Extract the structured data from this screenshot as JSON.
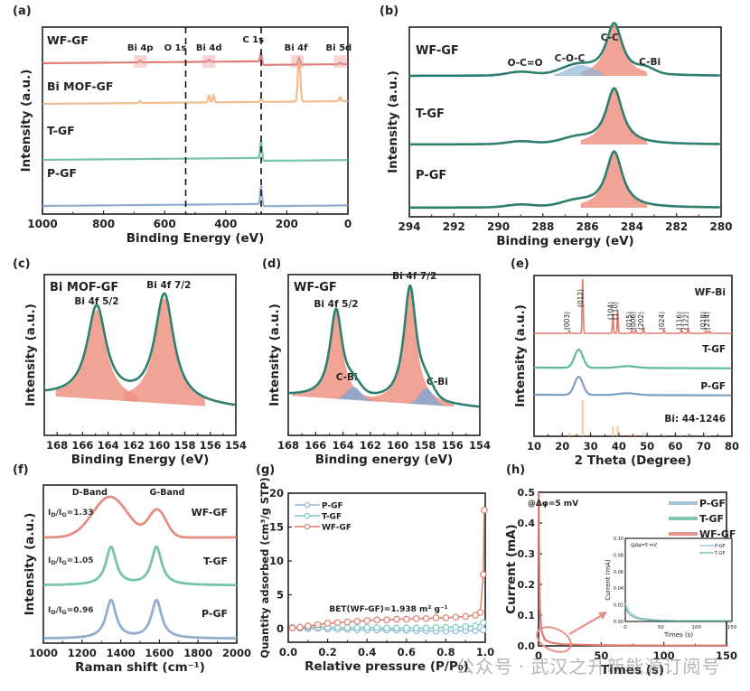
{
  "chart_data": [
    {
      "id": "a",
      "panel_label": "(a)",
      "type": "line",
      "title": "",
      "xlabel": "Binding Energy (eV)",
      "ylabel": "Intensity (a.u.)",
      "xlim": [
        1000,
        0
      ],
      "xticks": [
        1000,
        800,
        600,
        400,
        200,
        0
      ],
      "xtick_labels": [
        "1000",
        "800",
        "600",
        "400",
        "200",
        "0"
      ],
      "dashed_lines_x": [
        531,
        284
      ],
      "annotations": [
        {
          "text": "Bi 4p",
          "x": 680
        },
        {
          "text": "O 1s",
          "x": 565
        },
        {
          "text": "Bi 4d",
          "x": 455
        },
        {
          "text": "C 1s",
          "x": 310
        },
        {
          "text": "Bi 4f",
          "x": 170
        },
        {
          "text": "Bi 5d",
          "x": 30
        }
      ],
      "series": [
        {
          "name": "WF-GF",
          "color": "#d9665e",
          "offset": 3,
          "peaks": [
            [
              680,
              0.05
            ],
            [
              455,
              0.06
            ],
            [
              284,
              0.25
            ],
            [
              160,
              0.18
            ],
            [
              25,
              0.05
            ]
          ],
          "step_after_c1s": -0.1
        },
        {
          "name": "Bi MOF-GF",
          "color": "#f0b07a",
          "offset": 2,
          "peaks": [
            [
              680,
              0.05
            ],
            [
              455,
              0.2
            ],
            [
              440,
              0.2
            ],
            [
              284,
              0.1
            ],
            [
              162,
              0.9
            ],
            [
              157,
              0.7
            ],
            [
              25,
              0.12
            ]
          ],
          "step_after_c1s": 0.0
        },
        {
          "name": "T-GF",
          "color": "#5fb89e",
          "offset": 1,
          "peaks": [
            [
              284,
              0.5
            ]
          ],
          "step_after_c1s": -0.08
        },
        {
          "name": "P-GF",
          "color": "#7f9fc4",
          "offset": 0,
          "peaks": [
            [
              284,
              0.5
            ]
          ],
          "step_after_c1s": -0.06
        }
      ]
    },
    {
      "id": "b",
      "panel_label": "(b)",
      "type": "line",
      "xlabel": "Binding energy (eV)",
      "ylabel": "Intensity (a.u.)",
      "xlim": [
        294,
        280
      ],
      "xticks": [
        294,
        292,
        290,
        288,
        286,
        284,
        282,
        280
      ],
      "xtick_labels": [
        "294",
        "292",
        "290",
        "288",
        "286",
        "284",
        "282",
        "280"
      ],
      "annotations": [
        {
          "text": "O-C=O",
          "x": 288.8
        },
        {
          "text": "C-O-C",
          "x": 286.8
        },
        {
          "text": "C-C",
          "x": 285.0
        },
        {
          "text": "C-Bi",
          "x": 283.2
        }
      ],
      "series": [
        {
          "name": "WF-GF",
          "peak_center": 284.8,
          "peak_height": 0.55,
          "components": [
            "C-C",
            "C-O-C",
            "O-C=O",
            "C-Bi"
          ]
        },
        {
          "name": "T-GF",
          "peak_center": 284.8,
          "peak_height": 0.6,
          "components": [
            "C-C"
          ]
        },
        {
          "name": "P-GF",
          "peak_center": 284.8,
          "peak_height": 0.6,
          "components": [
            "C-C"
          ]
        }
      ]
    },
    {
      "id": "c",
      "panel_label": "(c)",
      "type": "line",
      "xlabel": "Binding Energy (eV)",
      "ylabel": "Intensity (a.u.)",
      "xlim": [
        169,
        154
      ],
      "xticks": [
        168,
        166,
        164,
        162,
        160,
        158,
        156,
        154
      ],
      "xtick_labels": [
        "168",
        "166",
        "164",
        "162",
        "160",
        "158",
        "156",
        "154"
      ],
      "sample_label": "Bi MOF-GF",
      "peaks": [
        {
          "label": "Bi 4f 5/2",
          "center": 164.9,
          "height": 0.72,
          "width": 0.9
        },
        {
          "label": "Bi 4f 7/2",
          "center": 159.6,
          "height": 0.85,
          "width": 0.9
        }
      ]
    },
    {
      "id": "d",
      "panel_label": "(d)",
      "type": "line",
      "xlabel": "Binding energy (eV)",
      "ylabel": "Intensity (a.u.)",
      "xlim": [
        168,
        154
      ],
      "xticks": [
        168,
        166,
        164,
        162,
        160,
        158,
        156,
        154
      ],
      "xtick_labels": [
        "168",
        "166",
        "164",
        "162",
        "160",
        "158",
        "156",
        "154"
      ],
      "sample_label": "WF-GF",
      "peaks": [
        {
          "label": "Bi 4f 5/2",
          "center": 164.5,
          "height": 0.7,
          "width": 0.55
        },
        {
          "label": "Bi 4f 7/2",
          "center": 159.1,
          "height": 0.92,
          "width": 0.55
        }
      ],
      "cbi_peaks": [
        {
          "label": "C-Bi",
          "center": 163.2,
          "height": 0.08
        },
        {
          "label": "C-Bi",
          "center": 157.9,
          "height": 0.1
        }
      ]
    },
    {
      "id": "e",
      "panel_label": "(e)",
      "type": "line",
      "xlabel": "2 Theta (Degree)",
      "ylabel": "Intensity (a.u.)",
      "xlim": [
        10,
        80
      ],
      "xticks": [
        10,
        20,
        30,
        40,
        50,
        60,
        70,
        80
      ],
      "xtick_labels": [
        "10",
        "20",
        "30",
        "40",
        "50",
        "60",
        "70",
        "80"
      ],
      "series": [
        {
          "name": "WF-Bi",
          "color": "#e07a6e"
        },
        {
          "name": "T-GF",
          "color": "#5fb89e"
        },
        {
          "name": "P-GF",
          "color": "#7f9fc4"
        },
        {
          "name": "Bi: 44-1246",
          "color": "#f0b07a"
        }
      ],
      "hkl": [
        {
          "label": "(003)",
          "x": 22.5
        },
        {
          "label": "(012)",
          "x": 27.2
        },
        {
          "label": "(104)",
          "x": 37.9
        },
        {
          "label": "(110)",
          "x": 39.6
        },
        {
          "label": "(015)",
          "x": 44.6
        },
        {
          "label": "(006)",
          "x": 46.0
        },
        {
          "label": "(202)",
          "x": 48.7
        },
        {
          "label": "(024)",
          "x": 56.0
        },
        {
          "label": "(116)",
          "x": 62.2
        },
        {
          "label": "(122)",
          "x": 64.5
        },
        {
          "label": "(018)",
          "x": 70.8
        },
        {
          "label": "(214)",
          "x": 72.0
        }
      ],
      "wfbi_peaks": [
        [
          22.5,
          0.05
        ],
        [
          27.2,
          1.0
        ],
        [
          37.9,
          0.35
        ],
        [
          39.6,
          0.42
        ],
        [
          44.6,
          0.05
        ],
        [
          46.0,
          0.06
        ],
        [
          48.7,
          0.1
        ],
        [
          56.0,
          0.06
        ],
        [
          62.2,
          0.07
        ],
        [
          64.5,
          0.08
        ],
        [
          70.8,
          0.05
        ],
        [
          72.0,
          0.04
        ]
      ],
      "ref_sticks": [
        [
          22.5,
          0.1
        ],
        [
          27.2,
          1.0
        ],
        [
          37.9,
          0.28
        ],
        [
          39.6,
          0.3
        ],
        [
          44.6,
          0.06
        ],
        [
          46.0,
          0.06
        ],
        [
          48.7,
          0.12
        ],
        [
          56.0,
          0.05
        ],
        [
          62.2,
          0.06
        ],
        [
          64.5,
          0.08
        ],
        [
          70.8,
          0.03
        ],
        [
          72.0,
          0.03
        ]
      ]
    },
    {
      "id": "f",
      "panel_label": "(f)",
      "type": "line",
      "xlabel": "Raman shift (cm⁻¹)",
      "ylabel": "Intensity (a.u.)",
      "xlim": [
        1000,
        2000
      ],
      "xticks": [
        1000,
        1200,
        1400,
        1600,
        1800,
        2000
      ],
      "xtick_labels": [
        "1000",
        "1200",
        "1400",
        "1600",
        "1800",
        "2000"
      ],
      "band_labels": [
        {
          "text": "D-Band",
          "x": 1240
        },
        {
          "text": "G-Band",
          "x": 1640
        }
      ],
      "series": [
        {
          "name": "WF-GF",
          "ratio_label": "Iₔ/Iₕ=1.33",
          "ratio": "1.33",
          "color": "#e07a6e",
          "d_center": 1345,
          "g_center": 1590
        },
        {
          "name": "T-GF",
          "ratio_label": "1.05",
          "ratio": "1.05",
          "color": "#5fb89e",
          "d_center": 1350,
          "g_center": 1585
        },
        {
          "name": "P-GF",
          "ratio_label": "0.96",
          "ratio": "0.96",
          "color": "#7f9fc4",
          "d_center": 1350,
          "g_center": 1585
        }
      ]
    },
    {
      "id": "g",
      "panel_label": "(g)",
      "type": "scatter",
      "xlabel": "Relative pressure (P/P₀)",
      "ylabel": "Quantity adsorbed (cm³/g STP)",
      "xlim": [
        0.0,
        1.0
      ],
      "ylim": [
        -2,
        20
      ],
      "xticks": [
        0.0,
        0.2,
        0.4,
        0.6,
        0.8,
        1.0
      ],
      "xtick_labels": [
        "0.0",
        "0.2",
        "0.4",
        "0.6",
        "0.8",
        "1.0"
      ],
      "yticks": [
        0,
        5,
        10,
        15,
        20
      ],
      "ytick_labels": [
        "0",
        "5",
        "10",
        "15",
        "20"
      ],
      "annotation": "BET(WF-GF)=1.938 m² g⁻¹",
      "legend": [
        "P-GF",
        "T-GF",
        "WF-GF"
      ],
      "series": [
        {
          "name": "P-GF",
          "color": "#8fb6d6",
          "x": [
            0.02,
            0.06,
            0.1,
            0.15,
            0.2,
            0.25,
            0.3,
            0.35,
            0.4,
            0.45,
            0.5,
            0.55,
            0.6,
            0.65,
            0.7,
            0.75,
            0.8,
            0.85,
            0.9,
            0.95,
            0.99
          ],
          "y": [
            0.1,
            0.05,
            0.0,
            0.0,
            -0.05,
            -0.1,
            -0.1,
            -0.15,
            -0.15,
            -0.2,
            -0.2,
            -0.2,
            -0.25,
            -0.3,
            -0.3,
            -0.35,
            -0.35,
            -0.35,
            -0.3,
            -0.3,
            -0.2
          ]
        },
        {
          "name": "T-GF",
          "color": "#7cc8c0",
          "x": [
            0.02,
            0.06,
            0.1,
            0.15,
            0.2,
            0.25,
            0.3,
            0.35,
            0.4,
            0.45,
            0.5,
            0.55,
            0.6,
            0.65,
            0.7,
            0.75,
            0.8,
            0.85,
            0.9,
            0.95,
            0.99
          ],
          "y": [
            0.2,
            0.2,
            0.2,
            0.25,
            0.2,
            0.2,
            0.15,
            0.15,
            0.2,
            0.15,
            0.1,
            0.1,
            0.1,
            0.1,
            0.1,
            0.15,
            0.2,
            0.2,
            0.3,
            0.4,
            0.9
          ]
        },
        {
          "name": "WF-GF",
          "color": "#e07a6e",
          "x": [
            0.02,
            0.06,
            0.1,
            0.15,
            0.2,
            0.25,
            0.3,
            0.35,
            0.4,
            0.45,
            0.5,
            0.55,
            0.6,
            0.65,
            0.7,
            0.75,
            0.8,
            0.85,
            0.9,
            0.95,
            0.975,
            0.99,
            0.995
          ],
          "y": [
            0.1,
            0.2,
            0.4,
            0.6,
            0.8,
            0.9,
            1.0,
            1.1,
            1.2,
            1.3,
            1.3,
            1.4,
            1.4,
            1.5,
            1.5,
            1.6,
            1.6,
            1.7,
            1.8,
            2.0,
            2.4,
            8.0,
            17.5
          ]
        }
      ]
    },
    {
      "id": "h",
      "panel_label": "(h)",
      "type": "line",
      "xlabel": "Times (s)",
      "ylabel": "Current (mA)",
      "xlim": [
        0,
        150
      ],
      "ylim": [
        0.0,
        0.5
      ],
      "xticks": [
        0,
        50,
        100,
        150
      ],
      "xtick_labels": [
        "0",
        "50",
        "100",
        "150"
      ],
      "yticks": [
        0.0,
        0.1,
        0.2,
        0.3,
        0.4,
        0.5
      ],
      "ytick_labels": [
        "0.0",
        "0.1",
        "0.2",
        "0.3",
        "0.4",
        "0.5"
      ],
      "annotation": "@Δφ=5 mV",
      "legend": [
        "P-GF",
        "T-GF",
        "WF-GF"
      ],
      "series": [
        {
          "name": "P-GF",
          "color": "#8fb6d6"
        },
        {
          "name": "T-GF",
          "color": "#5fb89e"
        },
        {
          "name": "WF-GF",
          "color": "#e07a6e",
          "x": [
            0,
            0.5,
            1,
            2,
            3,
            5,
            10,
            20,
            50,
            100,
            150
          ],
          "y": [
            0.5,
            0.3,
            0.12,
            0.06,
            0.04,
            0.02,
            0.01,
            0.005,
            0.002,
            0.001,
            0.001
          ]
        }
      ],
      "inset": {
        "xlabel": "Times (s)",
        "ylabel": "Current (mA)",
        "xlim": [
          0,
          150
        ],
        "ylim": [
          0.0,
          0.1
        ],
        "xticks": [
          0,
          50,
          100,
          150
        ],
        "xtick_labels": [
          "0",
          "50",
          "100",
          "150"
        ],
        "yticks": [
          0.0,
          0.02,
          0.04,
          0.06,
          0.08,
          0.1
        ],
        "ytick_labels": [
          "0.00",
          "0.02",
          "0.04",
          "0.06",
          "0.08",
          "0.10"
        ],
        "annotation": "@Δφ=5 mV",
        "legend": [
          "P-GF",
          "T-GF"
        ],
        "series": [
          {
            "name": "P-GF",
            "color": "#8fb6d6",
            "x": [
              0,
              2,
              5,
              10,
              15,
              20,
              30,
              40,
              50,
              75,
              100,
              150
            ],
            "y": [
              0.022,
              0.017,
              0.012,
              0.008,
              0.006,
              0.004,
              0.003,
              0.002,
              0.0015,
              0.001,
              0.001,
              0.001
            ]
          },
          {
            "name": "T-GF",
            "color": "#5fb89e",
            "x": [
              0,
              2,
              5,
              10,
              15,
              20,
              30,
              40,
              50,
              75,
              100,
              150
            ],
            "y": [
              0.018,
              0.013,
              0.009,
              0.006,
              0.004,
              0.003,
              0.002,
              0.0015,
              0.001,
              0.001,
              0.001,
              0.001
            ]
          }
        ]
      }
    }
  ],
  "watermark": {
    "left": "公众号",
    "sep": "·",
    "right": "武汉之升新能源订阅号"
  }
}
